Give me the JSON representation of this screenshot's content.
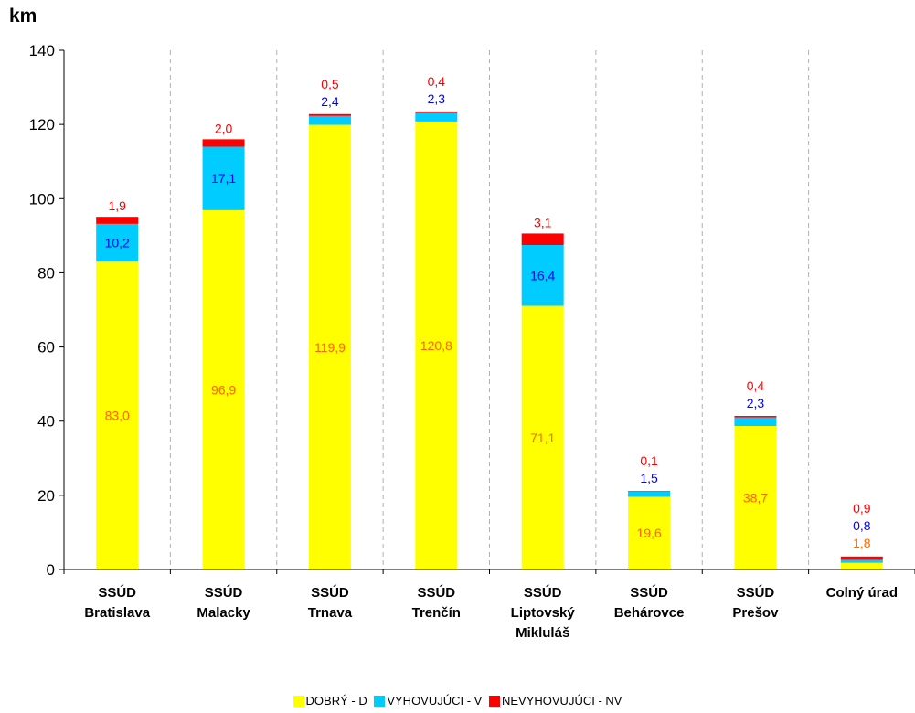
{
  "chart_data": {
    "type": "bar",
    "stacked": true,
    "ylabel": "km",
    "ylim": [
      0,
      140
    ],
    "yticks": [
      0,
      20,
      40,
      60,
      80,
      100,
      120,
      140
    ],
    "grid": "vertical-dashed",
    "legend_position": "bottom",
    "categories": [
      [
        "SSÚD",
        "Bratislava"
      ],
      [
        "SSÚD",
        "Malacky"
      ],
      [
        "SSÚD",
        "Trnava"
      ],
      [
        "SSÚD",
        "Trenčín"
      ],
      [
        "SSÚD",
        "Liptovský",
        "Mikluláš"
      ],
      [
        "SSÚD",
        "Behárovce"
      ],
      [
        "SSÚD",
        "Prešov"
      ],
      [
        "Colný úrad"
      ]
    ],
    "series": [
      {
        "name": "DOBRÝ - D",
        "color": "#ffff00",
        "label_color": "#ff6600",
        "values": [
          83.0,
          96.9,
          119.9,
          120.8,
          71.1,
          19.6,
          38.7,
          1.8
        ],
        "labels": [
          "83,0",
          "96,9",
          "119,9",
          "120,8",
          "71,1",
          "19,6",
          "38,7",
          "1,8"
        ]
      },
      {
        "name": "VYHOVUJÚCI - V",
        "color": "#00ccff",
        "label_color": "#0000ff",
        "values": [
          10.2,
          17.1,
          2.4,
          2.3,
          16.4,
          1.5,
          2.3,
          0.8
        ],
        "labels": [
          "10,2",
          "17,1",
          "2,4",
          "2,3",
          "16,4",
          "1,5",
          "2,3",
          "0,8"
        ]
      },
      {
        "name": "NEVYHOVUJÚCI - NV",
        "color": "#ff0000",
        "label_color": "#ff0000",
        "values": [
          1.9,
          2.0,
          0.5,
          0.4,
          3.1,
          0.1,
          0.4,
          0.9
        ],
        "labels": [
          "1,9",
          "2,0",
          "0,5",
          "0,4",
          "3,1",
          "0,1",
          "0,4",
          "0,9"
        ]
      }
    ]
  }
}
